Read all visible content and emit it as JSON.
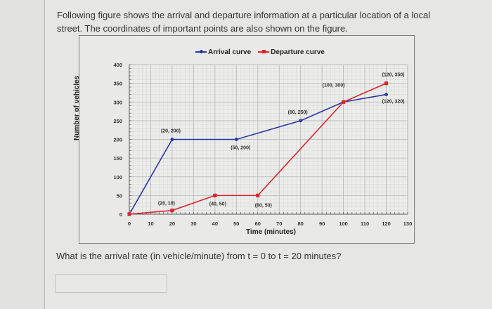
{
  "intro_text": "Following figure shows the arrival and departure information at a particular location of a local street. The coordinates of important points are also shown on the figure.",
  "question_text": "What is the arrival rate (in vehicle/minute) from t = 0 to t = 20 minutes?",
  "answer_input": {
    "value": "",
    "placeholder": ""
  },
  "colors": {
    "arrival": "#2b35a3",
    "departure": "#d7262e",
    "grid": "#c4c5c3",
    "axis": "#666666"
  },
  "chart_data": {
    "type": "line",
    "title": "",
    "xlabel": "Time (minutes)",
    "ylabel": "Number of vehicles",
    "xlim": [
      0,
      130
    ],
    "ylim": [
      0,
      400
    ],
    "x_ticks": [
      0,
      10,
      20,
      30,
      40,
      50,
      60,
      70,
      80,
      90,
      100,
      110,
      120,
      130
    ],
    "y_ticks": [
      0,
      50,
      100,
      150,
      200,
      250,
      300,
      350,
      400
    ],
    "grid": true,
    "legend_position": "top",
    "series": [
      {
        "name": "Arrival curve",
        "color": "#2b35a3",
        "marker": "circle",
        "points": [
          [
            0,
            0
          ],
          [
            20,
            200
          ],
          [
            50,
            200
          ],
          [
            80,
            250
          ],
          [
            100,
            300
          ],
          [
            120,
            320
          ]
        ]
      },
      {
        "name": "Departure curve",
        "color": "#d7262e",
        "marker": "square",
        "points": [
          [
            0,
            0
          ],
          [
            20,
            10
          ],
          [
            40,
            50
          ],
          [
            60,
            50
          ],
          [
            100,
            300
          ],
          [
            120,
            350
          ]
        ]
      }
    ],
    "annotations": [
      {
        "text": "(20, 200)",
        "x": 20,
        "y": 200,
        "series": "Arrival curve"
      },
      {
        "text": "(50, 200)",
        "x": 50,
        "y": 200,
        "series": "Arrival curve"
      },
      {
        "text": "(80, 250)",
        "x": 80,
        "y": 250,
        "series": "Arrival curve"
      },
      {
        "text": "(100, 300)",
        "x": 100,
        "y": 300,
        "series": "both"
      },
      {
        "text": "(120, 320)",
        "x": 120,
        "y": 320,
        "series": "Arrival curve"
      },
      {
        "text": "(120, 350)",
        "x": 120,
        "y": 350,
        "series": "Departure curve"
      },
      {
        "text": "(20, 10)",
        "x": 20,
        "y": 10,
        "series": "Departure curve"
      },
      {
        "text": "(40, 50)",
        "x": 40,
        "y": 50,
        "series": "Departure curve"
      },
      {
        "text": "(60, 50)",
        "x": 60,
        "y": 50,
        "series": "Departure curve"
      }
    ]
  }
}
